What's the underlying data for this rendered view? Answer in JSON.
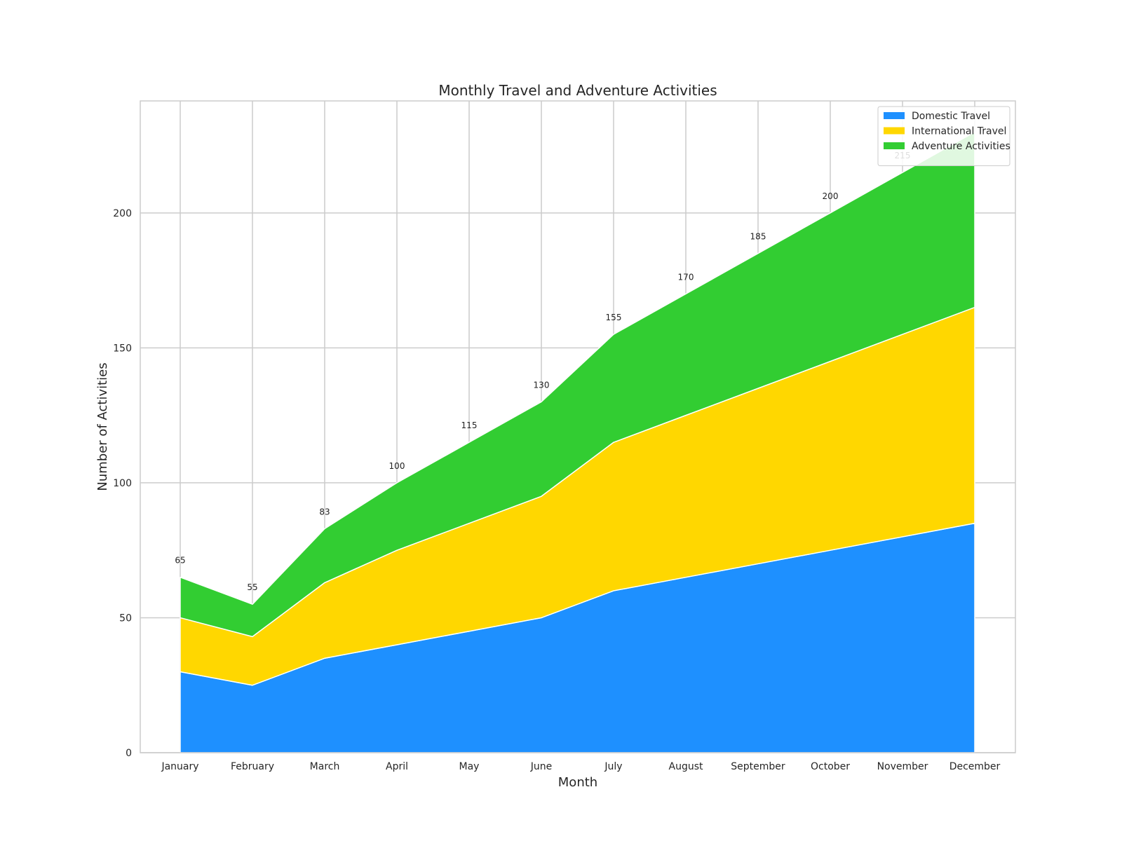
{
  "chart_data": {
    "type": "area",
    "stacked": true,
    "title": "Monthly Travel and Adventure Activities",
    "xlabel": "Month",
    "ylabel": "Number of Activities",
    "categories": [
      "January",
      "February",
      "March",
      "April",
      "May",
      "June",
      "July",
      "August",
      "September",
      "October",
      "November",
      "December"
    ],
    "series": [
      {
        "name": "Domestic Travel",
        "color": "#1e90ff",
        "values": [
          30,
          25,
          35,
          40,
          45,
          50,
          60,
          65,
          70,
          75,
          80,
          85
        ]
      },
      {
        "name": "International Travel",
        "color": "#ffd700",
        "values": [
          20,
          18,
          28,
          35,
          40,
          45,
          55,
          60,
          65,
          70,
          75,
          80
        ]
      },
      {
        "name": "Adventure Activities",
        "color": "#32cd32",
        "values": [
          15,
          12,
          20,
          25,
          30,
          35,
          40,
          45,
          50,
          55,
          60,
          65
        ]
      }
    ],
    "totals": [
      65,
      55,
      83,
      100,
      115,
      130,
      155,
      170,
      185,
      200,
      215,
      230
    ],
    "total_labels": [
      "65",
      "55",
      "83",
      "100",
      "115",
      "130",
      "155",
      "170",
      "185",
      "200",
      "215",
      ""
    ],
    "yticks": [
      0,
      50,
      100,
      150,
      200
    ],
    "ylim": [
      0,
      241.5
    ],
    "grid": true,
    "legend_position": "top-right"
  }
}
